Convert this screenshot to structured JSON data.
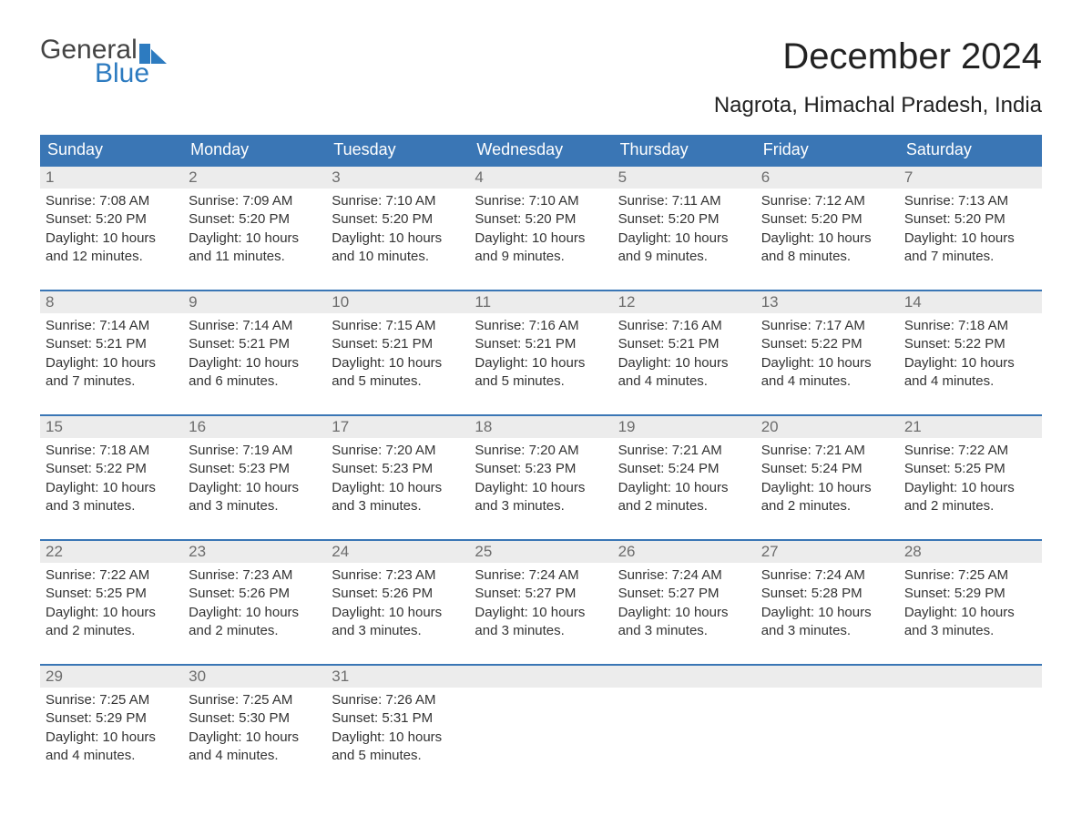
{
  "brand": {
    "word1": "General",
    "word2": "Blue",
    "accent_color": "#2d7bc0",
    "text_color": "#444444"
  },
  "title": "December 2024",
  "subtitle": "Nagrota, Himachal Pradesh, India",
  "colors": {
    "header_bg": "#3a76b5",
    "header_text": "#ffffff",
    "daynum_bg": "#ececec",
    "daynum_text": "#6d6d6d",
    "body_text": "#333333",
    "divider": "#3a76b5"
  },
  "day_names": [
    "Sunday",
    "Monday",
    "Tuesday",
    "Wednesday",
    "Thursday",
    "Friday",
    "Saturday"
  ],
  "weeks": [
    [
      {
        "n": "1",
        "sunrise": "Sunrise: 7:08 AM",
        "sunset": "Sunset: 5:20 PM",
        "daylight": "Daylight: 10 hours and 12 minutes."
      },
      {
        "n": "2",
        "sunrise": "Sunrise: 7:09 AM",
        "sunset": "Sunset: 5:20 PM",
        "daylight": "Daylight: 10 hours and 11 minutes."
      },
      {
        "n": "3",
        "sunrise": "Sunrise: 7:10 AM",
        "sunset": "Sunset: 5:20 PM",
        "daylight": "Daylight: 10 hours and 10 minutes."
      },
      {
        "n": "4",
        "sunrise": "Sunrise: 7:10 AM",
        "sunset": "Sunset: 5:20 PM",
        "daylight": "Daylight: 10 hours and 9 minutes."
      },
      {
        "n": "5",
        "sunrise": "Sunrise: 7:11 AM",
        "sunset": "Sunset: 5:20 PM",
        "daylight": "Daylight: 10 hours and 9 minutes."
      },
      {
        "n": "6",
        "sunrise": "Sunrise: 7:12 AM",
        "sunset": "Sunset: 5:20 PM",
        "daylight": "Daylight: 10 hours and 8 minutes."
      },
      {
        "n": "7",
        "sunrise": "Sunrise: 7:13 AM",
        "sunset": "Sunset: 5:20 PM",
        "daylight": "Daylight: 10 hours and 7 minutes."
      }
    ],
    [
      {
        "n": "8",
        "sunrise": "Sunrise: 7:14 AM",
        "sunset": "Sunset: 5:21 PM",
        "daylight": "Daylight: 10 hours and 7 minutes."
      },
      {
        "n": "9",
        "sunrise": "Sunrise: 7:14 AM",
        "sunset": "Sunset: 5:21 PM",
        "daylight": "Daylight: 10 hours and 6 minutes."
      },
      {
        "n": "10",
        "sunrise": "Sunrise: 7:15 AM",
        "sunset": "Sunset: 5:21 PM",
        "daylight": "Daylight: 10 hours and 5 minutes."
      },
      {
        "n": "11",
        "sunrise": "Sunrise: 7:16 AM",
        "sunset": "Sunset: 5:21 PM",
        "daylight": "Daylight: 10 hours and 5 minutes."
      },
      {
        "n": "12",
        "sunrise": "Sunrise: 7:16 AM",
        "sunset": "Sunset: 5:21 PM",
        "daylight": "Daylight: 10 hours and 4 minutes."
      },
      {
        "n": "13",
        "sunrise": "Sunrise: 7:17 AM",
        "sunset": "Sunset: 5:22 PM",
        "daylight": "Daylight: 10 hours and 4 minutes."
      },
      {
        "n": "14",
        "sunrise": "Sunrise: 7:18 AM",
        "sunset": "Sunset: 5:22 PM",
        "daylight": "Daylight: 10 hours and 4 minutes."
      }
    ],
    [
      {
        "n": "15",
        "sunrise": "Sunrise: 7:18 AM",
        "sunset": "Sunset: 5:22 PM",
        "daylight": "Daylight: 10 hours and 3 minutes."
      },
      {
        "n": "16",
        "sunrise": "Sunrise: 7:19 AM",
        "sunset": "Sunset: 5:23 PM",
        "daylight": "Daylight: 10 hours and 3 minutes."
      },
      {
        "n": "17",
        "sunrise": "Sunrise: 7:20 AM",
        "sunset": "Sunset: 5:23 PM",
        "daylight": "Daylight: 10 hours and 3 minutes."
      },
      {
        "n": "18",
        "sunrise": "Sunrise: 7:20 AM",
        "sunset": "Sunset: 5:23 PM",
        "daylight": "Daylight: 10 hours and 3 minutes."
      },
      {
        "n": "19",
        "sunrise": "Sunrise: 7:21 AM",
        "sunset": "Sunset: 5:24 PM",
        "daylight": "Daylight: 10 hours and 2 minutes."
      },
      {
        "n": "20",
        "sunrise": "Sunrise: 7:21 AM",
        "sunset": "Sunset: 5:24 PM",
        "daylight": "Daylight: 10 hours and 2 minutes."
      },
      {
        "n": "21",
        "sunrise": "Sunrise: 7:22 AM",
        "sunset": "Sunset: 5:25 PM",
        "daylight": "Daylight: 10 hours and 2 minutes."
      }
    ],
    [
      {
        "n": "22",
        "sunrise": "Sunrise: 7:22 AM",
        "sunset": "Sunset: 5:25 PM",
        "daylight": "Daylight: 10 hours and 2 minutes."
      },
      {
        "n": "23",
        "sunrise": "Sunrise: 7:23 AM",
        "sunset": "Sunset: 5:26 PM",
        "daylight": "Daylight: 10 hours and 2 minutes."
      },
      {
        "n": "24",
        "sunrise": "Sunrise: 7:23 AM",
        "sunset": "Sunset: 5:26 PM",
        "daylight": "Daylight: 10 hours and 3 minutes."
      },
      {
        "n": "25",
        "sunrise": "Sunrise: 7:24 AM",
        "sunset": "Sunset: 5:27 PM",
        "daylight": "Daylight: 10 hours and 3 minutes."
      },
      {
        "n": "26",
        "sunrise": "Sunrise: 7:24 AM",
        "sunset": "Sunset: 5:27 PM",
        "daylight": "Daylight: 10 hours and 3 minutes."
      },
      {
        "n": "27",
        "sunrise": "Sunrise: 7:24 AM",
        "sunset": "Sunset: 5:28 PM",
        "daylight": "Daylight: 10 hours and 3 minutes."
      },
      {
        "n": "28",
        "sunrise": "Sunrise: 7:25 AM",
        "sunset": "Sunset: 5:29 PM",
        "daylight": "Daylight: 10 hours and 3 minutes."
      }
    ],
    [
      {
        "n": "29",
        "sunrise": "Sunrise: 7:25 AM",
        "sunset": "Sunset: 5:29 PM",
        "daylight": "Daylight: 10 hours and 4 minutes."
      },
      {
        "n": "30",
        "sunrise": "Sunrise: 7:25 AM",
        "sunset": "Sunset: 5:30 PM",
        "daylight": "Daylight: 10 hours and 4 minutes."
      },
      {
        "n": "31",
        "sunrise": "Sunrise: 7:26 AM",
        "sunset": "Sunset: 5:31 PM",
        "daylight": "Daylight: 10 hours and 5 minutes."
      },
      {
        "n": "",
        "sunrise": "",
        "sunset": "",
        "daylight": ""
      },
      {
        "n": "",
        "sunrise": "",
        "sunset": "",
        "daylight": ""
      },
      {
        "n": "",
        "sunrise": "",
        "sunset": "",
        "daylight": ""
      },
      {
        "n": "",
        "sunrise": "",
        "sunset": "",
        "daylight": ""
      }
    ]
  ]
}
